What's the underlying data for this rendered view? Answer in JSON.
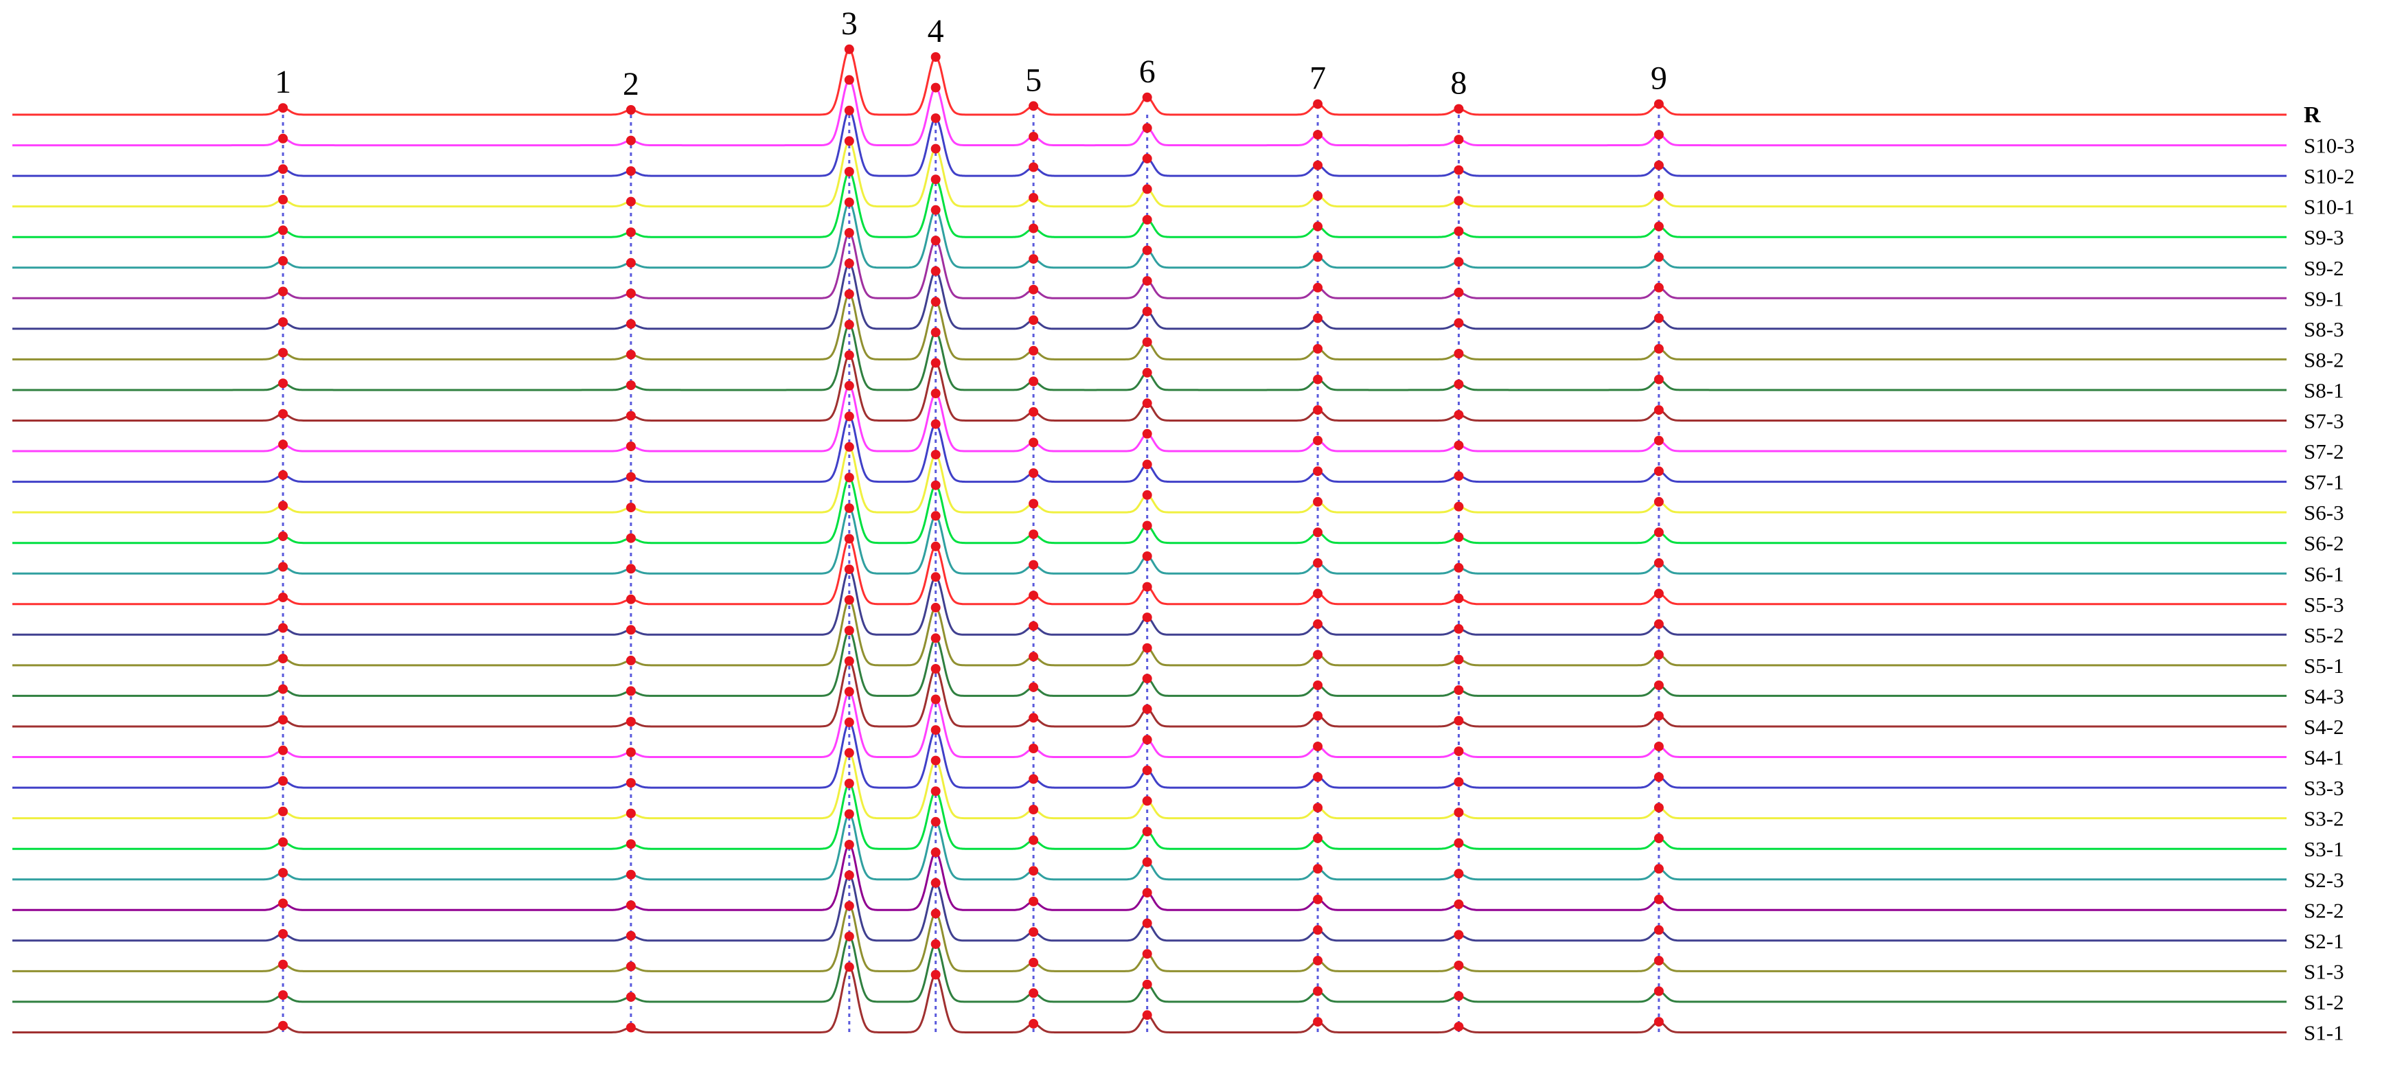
{
  "chart_data": {
    "type": "line",
    "title": "",
    "xlabel": "",
    "ylabel": "",
    "grid": false,
    "legend": "labels at right end of each trace",
    "peak_marker_color": "#e8141e",
    "peak_guide_color": "#5a5adc",
    "peaks": [
      {
        "label": "1",
        "x": 0.119,
        "height": 0.35
      },
      {
        "label": "2",
        "x": 0.272,
        "height": 0.25
      },
      {
        "label": "3",
        "x": 0.368,
        "height": 3.4
      },
      {
        "label": "4",
        "x": 0.406,
        "height": 3.0
      },
      {
        "label": "5",
        "x": 0.449,
        "height": 0.45
      },
      {
        "label": "6",
        "x": 0.499,
        "height": 0.9
      },
      {
        "label": "7",
        "x": 0.574,
        "height": 0.55
      },
      {
        "label": "8",
        "x": 0.636,
        "height": 0.3
      },
      {
        "label": "9",
        "x": 0.724,
        "height": 0.55
      }
    ],
    "series": [
      {
        "name": "R",
        "color": "#ff3030",
        "ref": true
      },
      {
        "name": "S10-3",
        "color": "#ff40ff"
      },
      {
        "name": "S10-2",
        "color": "#4040c8"
      },
      {
        "name": "S10-1",
        "color": "#f0f040"
      },
      {
        "name": "S9-3",
        "color": "#00e040"
      },
      {
        "name": "S9-2",
        "color": "#30a0a0"
      },
      {
        "name": "S9-1",
        "color": "#a030a0"
      },
      {
        "name": "S8-3",
        "color": "#404090"
      },
      {
        "name": "S8-2",
        "color": "#909030"
      },
      {
        "name": "S8-1",
        "color": "#308040"
      },
      {
        "name": "S7-3",
        "color": "#a03030"
      },
      {
        "name": "S7-2",
        "color": "#ff40ff"
      },
      {
        "name": "S7-1",
        "color": "#4040c8"
      },
      {
        "name": "S6-3",
        "color": "#f0f040"
      },
      {
        "name": "S6-2",
        "color": "#00e040"
      },
      {
        "name": "S6-1",
        "color": "#30a0a0"
      },
      {
        "name": "S5-3",
        "color": "#ff3030"
      },
      {
        "name": "S5-2",
        "color": "#404090"
      },
      {
        "name": "S5-1",
        "color": "#909030"
      },
      {
        "name": "S4-3",
        "color": "#308040"
      },
      {
        "name": "S4-2",
        "color": "#a03030"
      },
      {
        "name": "S4-1",
        "color": "#ff40ff"
      },
      {
        "name": "S3-3",
        "color": "#4040c8"
      },
      {
        "name": "S3-2",
        "color": "#f0f040"
      },
      {
        "name": "S3-1",
        "color": "#00e040"
      },
      {
        "name": "S2-3",
        "color": "#30a0a0"
      },
      {
        "name": "S2-2",
        "color": "#900090"
      },
      {
        "name": "S2-1",
        "color": "#404090"
      },
      {
        "name": "S1-3",
        "color": "#909030"
      },
      {
        "name": "S1-2",
        "color": "#308040"
      },
      {
        "name": "S1-1",
        "color": "#a03030"
      }
    ]
  }
}
